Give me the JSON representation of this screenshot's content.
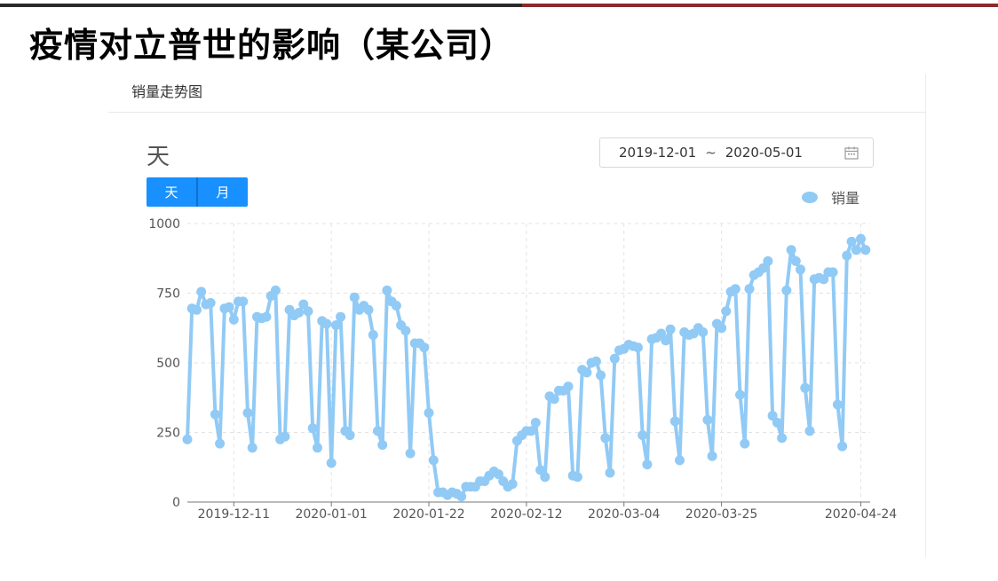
{
  "slide": {
    "title": "疫情对立普世的影响（某公司）"
  },
  "card": {
    "header": "销量走势图",
    "granularity_label": "天",
    "toggle": [
      "天",
      "月"
    ],
    "date_range": {
      "start": "2019-12-01",
      "separator": "~",
      "end": "2020-05-01"
    },
    "legend_label": "销量"
  },
  "colors": {
    "series": "#91caf5",
    "accent": "#1890ff",
    "title_bar_left": "#2b2b2b",
    "title_bar_right": "#8b2a2a"
  },
  "icons": {
    "date_picker": "calendar-icon",
    "legend": "legend-dot-icon"
  },
  "chart_data": {
    "type": "line",
    "xlabel": "",
    "ylabel": "",
    "ylim": [
      0,
      1000
    ],
    "yticks": [
      0,
      250,
      500,
      750,
      1000
    ],
    "x_start": "2019-12-01",
    "x_end": "2020-04-26",
    "xticks": [
      "2019-12-11",
      "2020-01-01",
      "2020-01-22",
      "2020-02-12",
      "2020-03-04",
      "2020-03-25",
      "2020-04-24"
    ],
    "grid": true,
    "legend": "top-right",
    "series": [
      {
        "name": "销量",
        "values": [
          225,
          695,
          690,
          755,
          710,
          715,
          315,
          210,
          695,
          700,
          655,
          720,
          720,
          320,
          195,
          665,
          660,
          665,
          740,
          760,
          225,
          235,
          690,
          670,
          680,
          710,
          685,
          265,
          195,
          650,
          640,
          140,
          635,
          665,
          255,
          240,
          735,
          690,
          705,
          690,
          600,
          255,
          205,
          760,
          720,
          705,
          635,
          615,
          175,
          570,
          570,
          555,
          320,
          150,
          35,
          35,
          25,
          35,
          30,
          20,
          55,
          55,
          55,
          75,
          75,
          95,
          110,
          100,
          75,
          55,
          65,
          220,
          240,
          255,
          255,
          285,
          115,
          90,
          380,
          370,
          400,
          400,
          415,
          95,
          90,
          475,
          465,
          500,
          505,
          455,
          230,
          105,
          515,
          545,
          550,
          565,
          560,
          555,
          240,
          135,
          585,
          590,
          605,
          580,
          620,
          290,
          150,
          610,
          600,
          605,
          625,
          610,
          295,
          165,
          640,
          625,
          685,
          755,
          765,
          385,
          210,
          765,
          815,
          825,
          840,
          865,
          310,
          285,
          230,
          760,
          905,
          865,
          835,
          410,
          255,
          800,
          805,
          800,
          825,
          825,
          350,
          200,
          885,
          935,
          905,
          945,
          905
        ]
      }
    ]
  }
}
